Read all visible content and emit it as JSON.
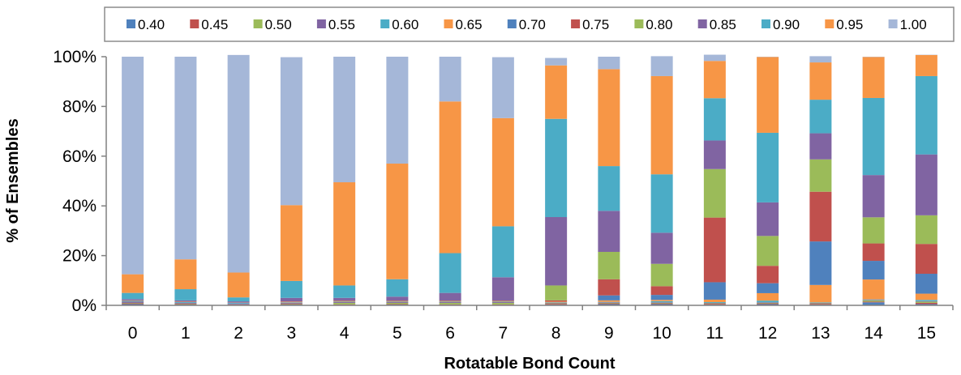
{
  "chart_data": {
    "type": "bar",
    "stacked": true,
    "xlabel": "Rotatable Bond Count",
    "ylabel": "% of Ensembles",
    "ylim": [
      0,
      100
    ],
    "yticks": [
      "0%",
      "20%",
      "40%",
      "60%",
      "80%",
      "100%"
    ],
    "grid": false,
    "legend_position": "top",
    "categories": [
      "0",
      "1",
      "2",
      "3",
      "4",
      "5",
      "6",
      "7",
      "8",
      "9",
      "10",
      "11",
      "12",
      "13",
      "14",
      "15"
    ],
    "series": [
      {
        "name": "0.40",
        "color": "#4f81bd",
        "values": [
          0.5,
          0.3,
          0.2,
          0.3,
          0.2,
          0.3,
          0.2,
          0.2,
          0.3,
          0.5,
          0.5,
          0.3,
          0.5,
          0.3,
          1.2,
          0.5
        ]
      },
      {
        "name": "0.45",
        "color": "#c0504d",
        "values": [
          0.3,
          0.2,
          0.1,
          0.2,
          0.2,
          0.2,
          0.2,
          0.2,
          0.3,
          0.3,
          0.3,
          0.3,
          0.3,
          0.3,
          0.3,
          0.5
        ]
      },
      {
        "name": "0.50",
        "color": "#9bbb59",
        "values": [
          0.2,
          0.2,
          0.1,
          0.2,
          0.6,
          0.5,
          0.6,
          0.6,
          0.2,
          0.2,
          0.2,
          0.2,
          0.2,
          0.2,
          0.5,
          0.5
        ]
      },
      {
        "name": "0.55",
        "color": "#8064a2",
        "values": [
          0.5,
          0.3,
          0.3,
          0.3,
          0.3,
          0.3,
          0.3,
          0.3,
          0.2,
          0.2,
          0.2,
          0.2,
          0.2,
          0.2,
          0.2,
          0.2
        ]
      },
      {
        "name": "0.60",
        "color": "#4bacc6",
        "values": [
          0.3,
          0.3,
          0.3,
          0.2,
          0.2,
          0.2,
          0.2,
          0.2,
          0.2,
          0.2,
          0.5,
          0.3,
          0.7,
          0.2,
          0.2,
          0.5
        ]
      },
      {
        "name": "0.65",
        "color": "#f79646",
        "values": [
          0.2,
          0.2,
          0.1,
          0.3,
          0.3,
          0.3,
          0.3,
          0.3,
          0.3,
          0.6,
          0.5,
          1.0,
          3.0,
          7.0,
          8.0,
          2.5
        ]
      },
      {
        "name": "0.70",
        "color": "#4f81bd",
        "values": [
          0.0,
          0.0,
          0.0,
          0.0,
          0.0,
          0.0,
          0.0,
          0.0,
          0.0,
          2.0,
          2.0,
          7.0,
          4.0,
          17.5,
          7.5,
          8.0
        ]
      },
      {
        "name": "0.75",
        "color": "#c0504d",
        "values": [
          0.0,
          0.0,
          0.0,
          0.0,
          0.0,
          0.0,
          0.0,
          0.0,
          0.5,
          6.5,
          3.5,
          26.0,
          7.0,
          20.0,
          7.0,
          12.0
        ]
      },
      {
        "name": "0.80",
        "color": "#9bbb59",
        "values": [
          0.0,
          0.0,
          0.0,
          0.0,
          0.0,
          0.0,
          0.0,
          0.0,
          6.0,
          11.0,
          9.0,
          19.5,
          12.0,
          13.0,
          10.5,
          11.5
        ]
      },
      {
        "name": "0.85",
        "color": "#8064a2",
        "values": [
          0.5,
          0.5,
          0.5,
          1.5,
          1.2,
          1.7,
          3.2,
          9.5,
          27.5,
          16.5,
          12.5,
          11.5,
          13.5,
          10.5,
          17.0,
          24.5
        ]
      },
      {
        "name": "0.90",
        "color": "#4bacc6",
        "values": [
          2.5,
          4.5,
          1.6,
          6.8,
          5.0,
          7.0,
          16.0,
          20.5,
          39.5,
          18.0,
          23.5,
          17.0,
          28.0,
          13.5,
          31.0,
          31.5
        ]
      },
      {
        "name": "0.95",
        "color": "#f79646",
        "values": [
          7.5,
          12.0,
          10.0,
          30.5,
          41.5,
          46.5,
          61.0,
          43.5,
          21.5,
          39.0,
          39.5,
          15.0,
          30.5,
          15.0,
          16.5,
          8.5
        ]
      },
      {
        "name": "1.00",
        "color": "#a5b7d8",
        "values": [
          87.5,
          81.5,
          87.5,
          59.5,
          50.5,
          43.0,
          18.0,
          24.5,
          3.0,
          5.0,
          8.0,
          2.5,
          0.1,
          2.5,
          0.1,
          0.1
        ]
      }
    ]
  }
}
